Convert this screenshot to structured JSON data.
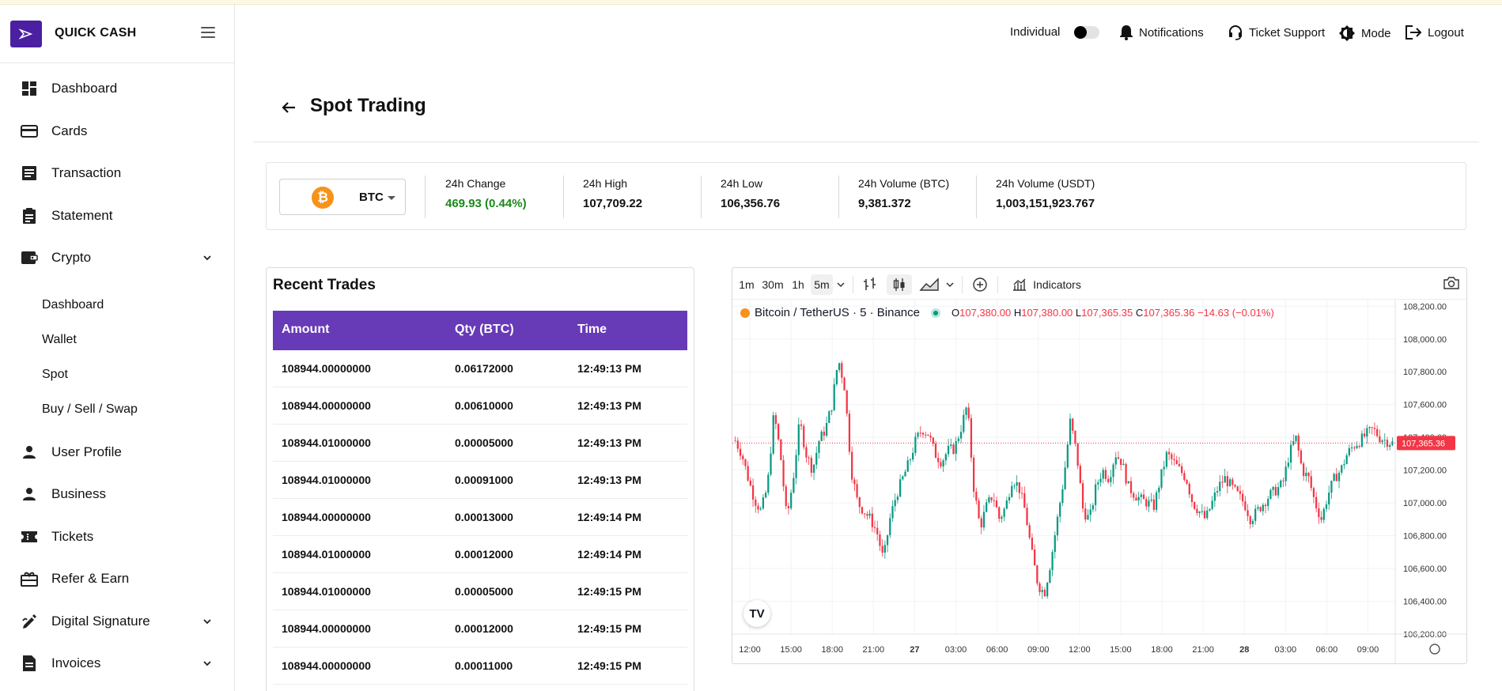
{
  "app": {
    "name": "QUICK CASH"
  },
  "sidebar": {
    "items": [
      {
        "label": "Dashboard",
        "icon": "dashboard-icon"
      },
      {
        "label": "Cards",
        "icon": "card-icon"
      },
      {
        "label": "Transaction",
        "icon": "list-icon"
      },
      {
        "label": "Statement",
        "icon": "clipboard-icon"
      },
      {
        "label": "Crypto",
        "icon": "wallet-icon"
      },
      {
        "label": "User Profile",
        "icon": "person-icon"
      },
      {
        "label": "Business",
        "icon": "person-icon"
      },
      {
        "label": "Tickets",
        "icon": "ticket-icon"
      },
      {
        "label": "Refer & Earn",
        "icon": "gift-icon"
      },
      {
        "label": "Digital Signature",
        "icon": "signature-icon"
      },
      {
        "label": "Invoices",
        "icon": "document-icon"
      }
    ],
    "crypto_sub": [
      "Dashboard",
      "Wallet",
      "Spot",
      "Buy / Sell / Swap"
    ]
  },
  "header": {
    "account_type": "Individual",
    "notifications": "Notifications",
    "ticket_support": "Ticket Support",
    "mode": "Mode",
    "logout": "Logout"
  },
  "page": {
    "title": "Spot Trading"
  },
  "ticker": {
    "symbol": "BTC",
    "stats": [
      {
        "label": "24h Change",
        "value": "469.93 (0.44%)",
        "positive": true
      },
      {
        "label": "24h High",
        "value": "107,709.22"
      },
      {
        "label": "24h Low",
        "value": "106,356.76"
      },
      {
        "label": "24h Volume (BTC)",
        "value": "9,381.372"
      },
      {
        "label": "24h Volume (USDT)",
        "value": "1,003,151,923.767"
      }
    ]
  },
  "trades": {
    "title": "Recent Trades",
    "columns": [
      "Amount",
      "Qty (BTC)",
      "Time"
    ],
    "rows": [
      [
        "108944.00000000",
        "0.06172000",
        "12:49:13 PM"
      ],
      [
        "108944.00000000",
        "0.00610000",
        "12:49:13 PM"
      ],
      [
        "108944.01000000",
        "0.00005000",
        "12:49:13 PM"
      ],
      [
        "108944.01000000",
        "0.00091000",
        "12:49:13 PM"
      ],
      [
        "108944.00000000",
        "0.00013000",
        "12:49:14 PM"
      ],
      [
        "108944.01000000",
        "0.00012000",
        "12:49:14 PM"
      ],
      [
        "108944.01000000",
        "0.00005000",
        "12:49:15 PM"
      ],
      [
        "108944.00000000",
        "0.00012000",
        "12:49:15 PM"
      ],
      [
        "108944.00000000",
        "0.00011000",
        "12:49:15 PM"
      ]
    ]
  },
  "chart": {
    "intervals": [
      "1m",
      "30m",
      "1h",
      "5m"
    ],
    "active_interval": "5m",
    "indicators_label": "Indicators",
    "pair": "Bitcoin / TetherUS · 5 · Binance",
    "ohlc": {
      "o": "107,380.00",
      "h": "107,380.00",
      "l": "107,365.35",
      "c": "107,365.36",
      "chg": "−14.63 (−0.01%)"
    },
    "last_price": "107,365.36",
    "logo_text": "TV",
    "colors": {
      "up": "#089981",
      "down": "#f23645"
    }
  },
  "chart_data": {
    "type": "candlestick",
    "title": "Bitcoin / TetherUS · 5 · Binance",
    "x_ticks": [
      "12:00",
      "15:00",
      "18:00",
      "21:00",
      "27",
      "03:00",
      "06:00",
      "09:00",
      "12:00",
      "15:00",
      "18:00",
      "21:00",
      "28",
      "03:00",
      "06:00",
      "09:00"
    ],
    "y_ticks": [
      "108,200.00",
      "108,000.00",
      "107,800.00",
      "107,600.00",
      "107,400.00",
      "107,200.00",
      "107,000.00",
      "106,800.00",
      "106,600.00",
      "106,400.00",
      "106,200.00"
    ],
    "ylim": [
      106200,
      108240
    ],
    "close_series": [
      107380,
      107300,
      107150,
      107020,
      106950,
      107100,
      107550,
      107300,
      106900,
      107150,
      107500,
      107300,
      107200,
      107380,
      107450,
      107600,
      107880,
      107700,
      107200,
      107000,
      106950,
      106900,
      106820,
      106650,
      106900,
      107050,
      107150,
      107250,
      107380,
      107450,
      107420,
      107300,
      107250,
      107320,
      107330,
      107450,
      107600,
      107100,
      106850,
      106980,
      107050,
      106900,
      106980,
      107150,
      107100,
      106950,
      106700,
      106500,
      106450,
      106650,
      106900,
      107150,
      107500,
      107300,
      106950,
      106900,
      107100,
      107200,
      107150,
      107300,
      107250,
      107100,
      107050,
      107020,
      107000,
      106980,
      107150,
      107300,
      107250,
      107200,
      107150,
      107000,
      106950,
      106900,
      107000,
      107100,
      107150,
      107100,
      107050,
      107000,
      106900,
      106950,
      107000,
      107050,
      107080,
      107120,
      107300,
      107400,
      107200,
      107150,
      107000,
      106900,
      107050,
      107150,
      107200,
      107300,
      107350,
      107380,
      107420,
      107450,
      107400,
      107380,
      107365
    ]
  }
}
